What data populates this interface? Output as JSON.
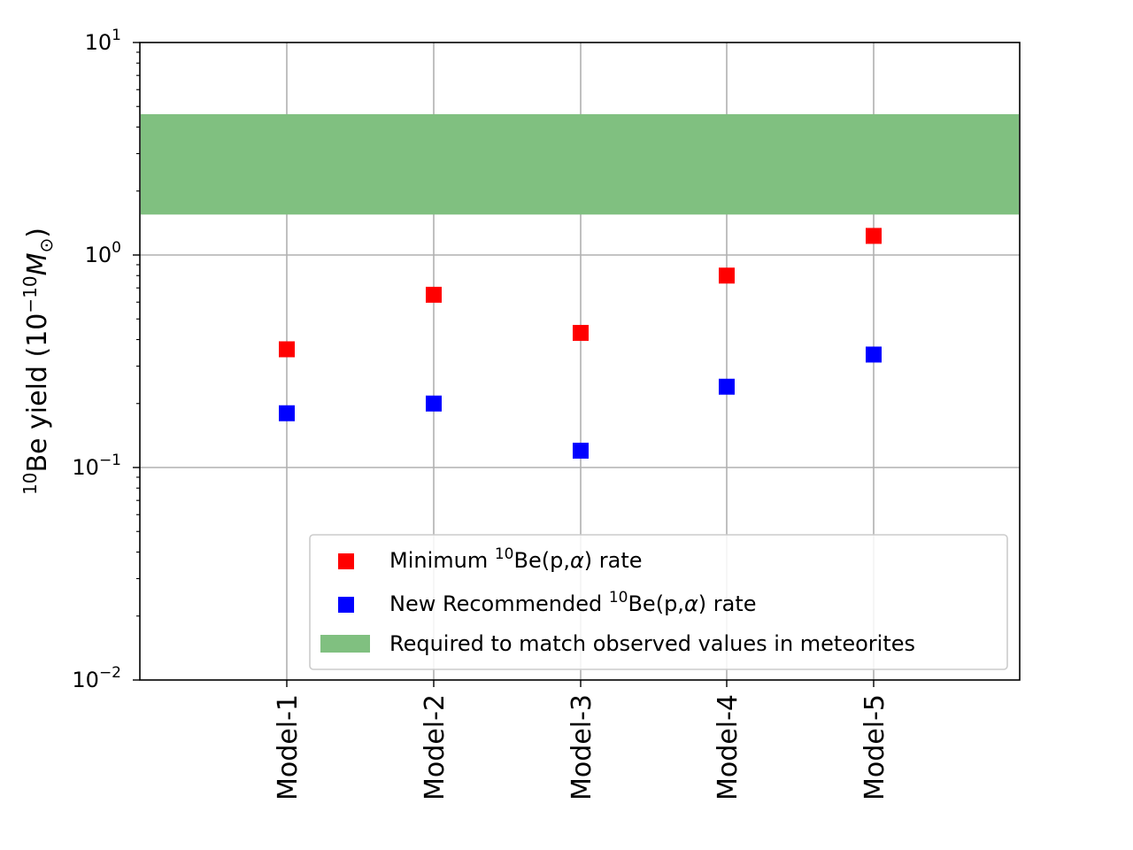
{
  "chart_data": {
    "type": "scatter",
    "yscale": "log",
    "ylim": [
      0.01,
      10
    ],
    "ylabel": {
      "base": "Be yield (10",
      "iso": "10",
      "exp": "−10",
      "unit": "M",
      "sub": "⊙",
      "close": ")"
    },
    "y_ticks": [
      {
        "base": "10",
        "exp": "1",
        "value": 10
      },
      {
        "base": "10",
        "exp": "0",
        "value": 1
      },
      {
        "base": "10",
        "exp": "−1",
        "value": 0.1
      },
      {
        "base": "10",
        "exp": "−2",
        "value": 0.01
      }
    ],
    "categories": [
      "Model-1",
      "Model-2",
      "Model-3",
      "Model-4",
      "Model-5"
    ],
    "grid": true,
    "band": {
      "name": "Required to match observed values in meteorites",
      "low": 1.55,
      "high": 4.6,
      "color": "#80c080"
    },
    "series": [
      {
        "name": "Minimum 10Be(p,α) rate",
        "color": "#ff0000",
        "marker": "square",
        "values": [
          0.36,
          0.65,
          0.43,
          0.8,
          1.23
        ]
      },
      {
        "name": "New Recommended 10Be(p,α) rate",
        "color": "#0000ff",
        "marker": "square",
        "values": [
          0.18,
          0.2,
          0.12,
          0.24,
          0.34
        ]
      }
    ],
    "legend": {
      "position": "lower-right",
      "entries": [
        {
          "pre": "Minimum ",
          "iso": "10",
          "post": "Be(p,",
          "greek": "α",
          "tail": ") rate"
        },
        {
          "pre": "New Recommended ",
          "iso": "10",
          "post": "Be(p,",
          "greek": "α",
          "tail": ") rate"
        },
        {
          "text": "Required to match observed values in meteorites"
        }
      ]
    }
  }
}
